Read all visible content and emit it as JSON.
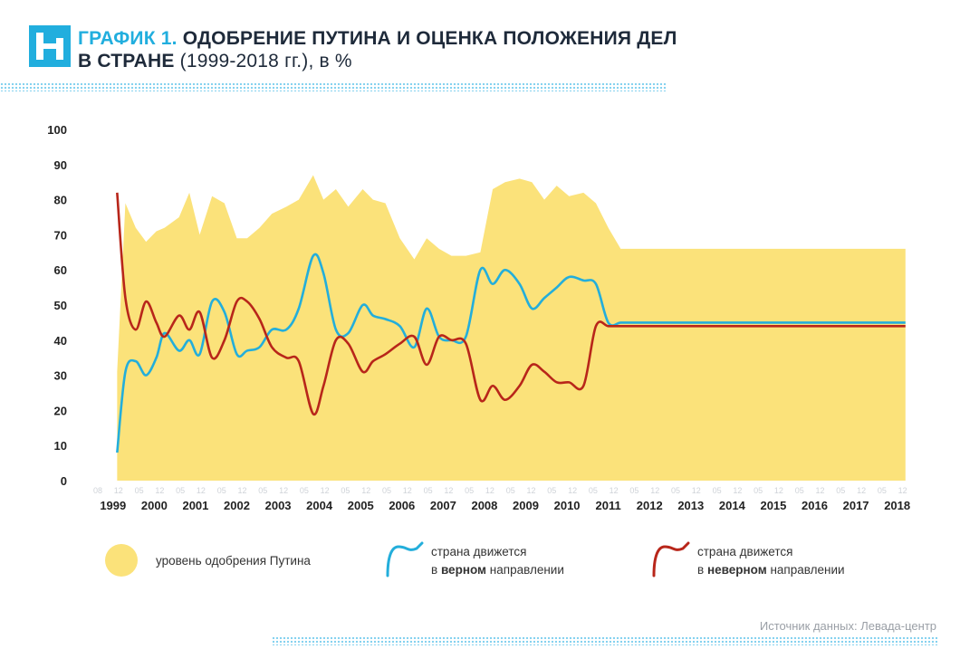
{
  "title": {
    "prefix": "ГРАФИК 1.",
    "line1": "ОДОБРЕНИЕ ПУТИНА И ОЦЕНКА ПОЛОЖЕНИЯ ДЕЛ",
    "line2_bold": "В СТРАНЕ",
    "line2_rest": "(1999-2018 гг.), в %"
  },
  "source": "Источник данных: Левада-центр",
  "legend": {
    "approval": "уровень одобрения Путина",
    "right_1": "страна движется",
    "right_2a": "в",
    "right_2b": "верном",
    "right_2c": "направлении",
    "wrong_1": "страна движется",
    "wrong_2a": "в",
    "wrong_2b": "неверном",
    "wrong_2c": "направлении"
  },
  "chart_data": {
    "type": "area",
    "title": "ОДОБРЕНИЕ ПУТИНА И ОЦЕНКА ПОЛОЖЕНИЯ ДЕЛ В СТРАНЕ (1999-2018 гг.), в %",
    "xlabel": "",
    "ylabel": "",
    "ylim": [
      0,
      100
    ],
    "yticks": [
      0,
      10,
      20,
      30,
      40,
      50,
      60,
      70,
      80,
      90,
      100
    ],
    "grid": false,
    "legend_position": "bottom",
    "colors": {
      "approval": "#fbe27a",
      "right": "#23aedb",
      "wrong": "#b8261a",
      "ticks": "#cfd3d8",
      "axis_text": "#222222"
    },
    "years": [
      "1999",
      "2000",
      "2001",
      "2002",
      "2003",
      "2004",
      "2005",
      "2006",
      "2007",
      "2008",
      "2009",
      "2010",
      "2011",
      "2012",
      "2013",
      "2014",
      "2015",
      "2016",
      "2017",
      "2018"
    ],
    "x": [
      1999.6,
      1999.8,
      2000.05,
      2000.3,
      2000.55,
      2000.75,
      2001.1,
      2001.35,
      2001.6,
      2001.9,
      2002.2,
      2002.5,
      2002.75,
      2003.05,
      2003.35,
      2003.7,
      2004.0,
      2004.35,
      2004.6,
      2004.9,
      2005.2,
      2005.55,
      2005.8,
      2006.1,
      2006.45,
      2006.8,
      2007.1,
      2007.4,
      2007.7,
      2008.05,
      2008.4,
      2008.7,
      2009.0,
      2009.35,
      2009.65,
      2009.95,
      2010.25,
      2010.55,
      2010.9,
      2011.2,
      2011.5,
      2011.8,
      2012.1,
      2012.4,
      2012.75,
      2013.1,
      2013.5,
      2013.75,
      2014.1,
      2014.45,
      2014.75,
      2015.1,
      2015.4,
      2015.7,
      2016.05,
      2016.4,
      2016.75,
      2017.05,
      2017.35,
      2017.65,
      2017.95,
      2018.2,
      2018.45,
      2018.7
    ],
    "series": [
      {
        "name": "уровень одобрения Путина",
        "values": [
          31,
          79,
          72,
          68,
          71,
          72,
          75,
          82,
          70,
          81,
          79,
          69,
          69,
          72,
          76,
          78,
          80,
          87,
          80,
          83,
          78,
          83,
          80,
          79,
          69,
          63,
          69,
          66,
          64,
          64,
          65,
          83,
          85,
          86,
          85,
          80,
          84,
          81,
          82,
          79,
          72,
          66,
          66,
          66,
          66,
          66,
          66,
          66,
          66,
          66,
          66,
          66,
          66,
          66,
          66,
          66,
          66,
          66,
          66,
          66,
          66,
          66,
          66,
          66
        ]
      },
      {
        "name": "страна движется в верном направлении",
        "values": [
          8,
          31,
          34,
          30,
          35,
          42,
          37,
          40,
          36,
          51,
          48,
          36,
          37,
          38,
          43,
          43,
          49,
          64,
          59,
          43,
          42,
          50,
          47,
          46,
          44,
          38,
          49,
          41,
          40,
          41,
          60,
          56,
          60,
          56,
          49,
          52,
          55,
          58,
          57,
          56,
          45,
          45,
          45,
          45,
          45,
          45,
          45,
          45,
          45,
          45,
          45,
          45,
          45,
          45,
          45,
          45,
          45,
          45,
          45,
          45,
          45,
          45,
          45,
          45
        ]
      },
      {
        "name": "страна движется в неверном направлении",
        "values": [
          82,
          52,
          43,
          51,
          45,
          41,
          47,
          43,
          48,
          35,
          40,
          51,
          51,
          46,
          38,
          35,
          34,
          19,
          27,
          40,
          39,
          31,
          34,
          36,
          39,
          41,
          33,
          41,
          40,
          39,
          23,
          27,
          23,
          27,
          33,
          31,
          28,
          28,
          27,
          44,
          44,
          44,
          44,
          44,
          44,
          44,
          44,
          44,
          44,
          44,
          44,
          44,
          44,
          44,
          44,
          44,
          44,
          44,
          44,
          44,
          44,
          44,
          44,
          44
        ]
      }
    ],
    "point_labels": [
      {
        "x": 1999.0,
        "t": "08"
      },
      {
        "x": 1999.5,
        "t": "12"
      },
      {
        "x": 2000.0,
        "t": "05"
      },
      {
        "x": 2000.5,
        "t": "12"
      },
      {
        "x": 2001.0,
        "t": "05"
      },
      {
        "x": 2001.5,
        "t": "12"
      },
      {
        "x": 2002.0,
        "t": "05"
      },
      {
        "x": 2002.5,
        "t": "12"
      },
      {
        "x": 2003.0,
        "t": "05"
      },
      {
        "x": 2003.5,
        "t": "12"
      },
      {
        "x": 2004.0,
        "t": "05"
      },
      {
        "x": 2004.5,
        "t": "12"
      },
      {
        "x": 2005.0,
        "t": "05"
      },
      {
        "x": 2005.5,
        "t": "12"
      },
      {
        "x": 2006.0,
        "t": "05"
      },
      {
        "x": 2006.5,
        "t": "12"
      },
      {
        "x": 2007.0,
        "t": "05"
      },
      {
        "x": 2007.5,
        "t": "12"
      },
      {
        "x": 2008.0,
        "t": "05"
      },
      {
        "x": 2008.5,
        "t": "12"
      },
      {
        "x": 2009.0,
        "t": "05"
      },
      {
        "x": 2009.5,
        "t": "12"
      },
      {
        "x": 2010.0,
        "t": "05"
      },
      {
        "x": 2010.5,
        "t": "12"
      },
      {
        "x": 2011.0,
        "t": "05"
      },
      {
        "x": 2011.5,
        "t": "12"
      },
      {
        "x": 2012.0,
        "t": "05"
      },
      {
        "x": 2012.5,
        "t": "12"
      },
      {
        "x": 2013.0,
        "t": "05"
      },
      {
        "x": 2013.5,
        "t": "12"
      },
      {
        "x": 2014.0,
        "t": "05"
      },
      {
        "x": 2014.5,
        "t": "12"
      },
      {
        "x": 2015.0,
        "t": "05"
      },
      {
        "x": 2015.5,
        "t": "12"
      },
      {
        "x": 2016.0,
        "t": "05"
      },
      {
        "x": 2016.5,
        "t": "12"
      },
      {
        "x": 2017.0,
        "t": "05"
      },
      {
        "x": 2017.5,
        "t": "12"
      },
      {
        "x": 2018.0,
        "t": "05"
      },
      {
        "x": 2018.5,
        "t": "12"
      }
    ]
  }
}
